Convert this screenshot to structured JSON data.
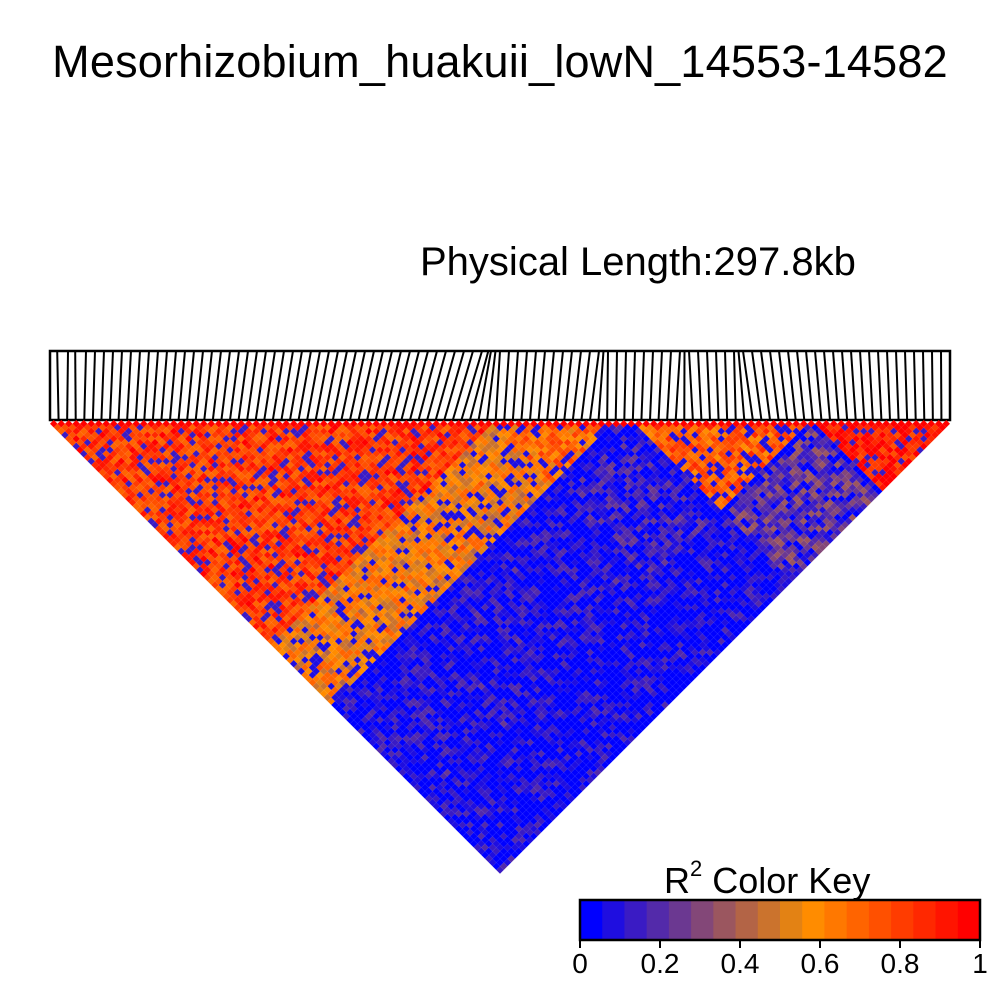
{
  "title": "Mesorhizobium_huakuii_lowN_14553-14582",
  "subtitle": "Physical Length:297.8kb",
  "chart_data": {
    "type": "heatmap",
    "title": "Mesorhizobium_huakuii_lowN_14553-14582",
    "subtitle": "Physical Length:297.8kb",
    "color_key": {
      "label": "R",
      "label_sup": "2",
      "label_suffix": " Color Key",
      "range": [
        0,
        1
      ],
      "ticks": [
        "0",
        "0.2",
        "0.4",
        "0.6",
        "0.8",
        "1"
      ],
      "colors": [
        "#0000FF",
        "#1F0EE0",
        "#3A1BC4",
        "#532AAA",
        "#6B3891",
        "#834778",
        "#9B565F",
        "#B36446",
        "#CB732D",
        "#E38214",
        "#FF8C00",
        "#FF7800",
        "#FF6400",
        "#FF5000",
        "#FF3C00",
        "#FF2800",
        "#FF1400",
        "#FF0000"
      ]
    },
    "ld_blocks": [
      {
        "from": 0.0,
        "to": 0.49,
        "mean_r2": 0.78
      },
      {
        "from": 0.49,
        "to": 0.62,
        "mean_r2": 0.65
      },
      {
        "from": 0.65,
        "to": 0.84,
        "mean_r2": 0.7
      },
      {
        "from": 0.85,
        "to": 1.0,
        "mean_r2": 0.88
      }
    ],
    "between_block_r2": [
      {
        "a": 0,
        "b": 1,
        "r2": 0.55
      },
      {
        "a": 0,
        "b": 2,
        "r2": 0.05
      },
      {
        "a": 1,
        "b": 2,
        "r2": 0.1
      },
      {
        "a": 2,
        "b": 3,
        "r2": 0.2
      }
    ],
    "snp_positions": [
      0.0,
      0.008,
      0.02,
      0.028,
      0.04,
      0.05,
      0.06,
      0.07,
      0.08,
      0.09,
      0.1,
      0.11,
      0.12,
      0.13,
      0.14,
      0.15,
      0.16,
      0.17,
      0.18,
      0.19,
      0.2,
      0.21,
      0.22,
      0.23,
      0.24,
      0.25,
      0.26,
      0.27,
      0.28,
      0.29,
      0.3,
      0.31,
      0.32,
      0.33,
      0.34,
      0.35,
      0.36,
      0.37,
      0.38,
      0.39,
      0.4,
      0.41,
      0.42,
      0.43,
      0.44,
      0.45,
      0.46,
      0.47,
      0.48,
      0.487,
      0.49,
      0.495,
      0.5,
      0.51,
      0.52,
      0.53,
      0.54,
      0.55,
      0.56,
      0.57,
      0.58,
      0.59,
      0.6,
      0.61,
      0.615,
      0.62,
      0.63,
      0.64,
      0.65,
      0.66,
      0.67,
      0.68,
      0.69,
      0.7,
      0.705,
      0.71,
      0.72,
      0.73,
      0.74,
      0.75,
      0.76,
      0.765,
      0.77,
      0.78,
      0.79,
      0.8,
      0.81,
      0.82,
      0.83,
      0.84,
      0.85,
      0.86,
      0.87,
      0.88,
      0.89,
      0.9,
      0.91,
      0.92,
      0.93,
      0.94,
      0.95,
      0.96,
      0.97,
      0.98,
      0.99,
      1.0
    ]
  }
}
